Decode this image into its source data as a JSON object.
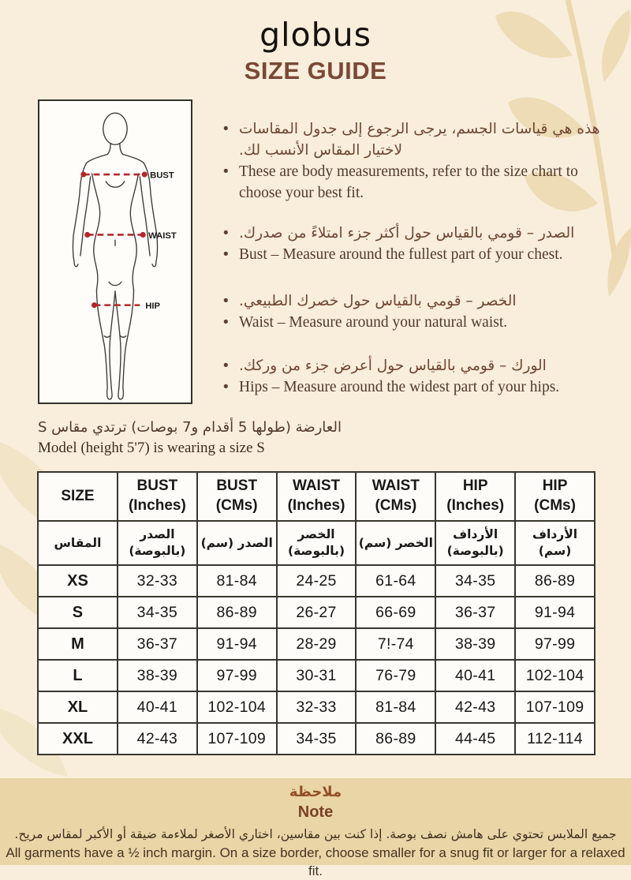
{
  "colors": {
    "page_background": "#f8eedb",
    "footer_background": "#e9d5a6",
    "accent_brown": "#7b4836",
    "measure_line_red": "#b4272b",
    "leaf_decoration": "#eedcb6"
  },
  "header": {
    "logo": "globus",
    "title": "SIZE GUIDE"
  },
  "diagram": {
    "bust_label": "BUST",
    "waist_label": "WAIST",
    "hip_label": "HIP"
  },
  "instructions": [
    {
      "ar": "هذه هي قياسات الجسم، يرجى الرجوع إلى جدول المقاسات لاختيار المقاس الأنسب لك.",
      "en": "These are body measurements, refer to the size chart to choose your best fit."
    },
    {
      "ar": "الصدر – قومي بالقياس حول أكثر جزء امتلاءً من صدرك.",
      "en": "Bust – Measure around the fullest part of your chest."
    },
    {
      "ar": "الخصر – قومي بالقياس حول خصرك الطبيعي.",
      "en": "Waist – Measure around your natural waist."
    },
    {
      "ar": "الورك – قومي بالقياس حول أعرض جزء من وركك.",
      "en": "Hips – Measure around the widest part of your hips."
    }
  ],
  "model_note": {
    "ar": "العارضة (طولها 5 أقدام و7 بوصات) ترتدي مقاس S",
    "en": "Model (height 5'7) is wearing a size S"
  },
  "size_table": {
    "columns": [
      {
        "en": "SIZE",
        "ar": "المقاس"
      },
      {
        "en": "BUST\n(Inches)",
        "ar": "الصدر\n(بالبوصة)"
      },
      {
        "en": "BUST\n(CMs)",
        "ar": "الصدر (سم)"
      },
      {
        "en": "WAIST\n(Inches)",
        "ar": "الخصر\n(بالبوصة)"
      },
      {
        "en": "WAIST\n(CMs)",
        "ar": "الخصر (سم)"
      },
      {
        "en": "HIP\n(Inches)",
        "ar": "الأرداف\n(بالبوصة)"
      },
      {
        "en": "HIP\n(CMs)",
        "ar": "الأرداف (سم)"
      }
    ],
    "rows": [
      [
        "XS",
        "32-33",
        "81-84",
        "24-25",
        "61-64",
        "34-35",
        "86-89"
      ],
      [
        "S",
        "34-35",
        "86-89",
        "26-27",
        "66-69",
        "36-37",
        "91-94"
      ],
      [
        "M",
        "36-37",
        "91-94",
        "28-29",
        "7!-74",
        "38-39",
        "97-99"
      ],
      [
        "L",
        "38-39",
        "97-99",
        "30-31",
        "76-79",
        "40-41",
        "102-104"
      ],
      [
        "XL",
        "40-41",
        "102-104",
        "32-33",
        "81-84",
        "42-43",
        "107-109"
      ],
      [
        "XXL",
        "42-43",
        "107-109",
        "34-35",
        "86-89",
        "44-45",
        "112-114"
      ]
    ]
  },
  "footer": {
    "heading_ar": "ملاحظة",
    "heading_en": "Note",
    "body_ar": "جميع الملابس تحتوي على هامش نصف بوصة. إذا كنت بين مقاسين، اختاري الأصغر لملاءمة ضيقة أو الأكبر لمقاس مريح.",
    "body_en": "All garments have a ½ inch margin. On a size border, choose smaller for a snug fit or larger for a relaxed fit."
  }
}
